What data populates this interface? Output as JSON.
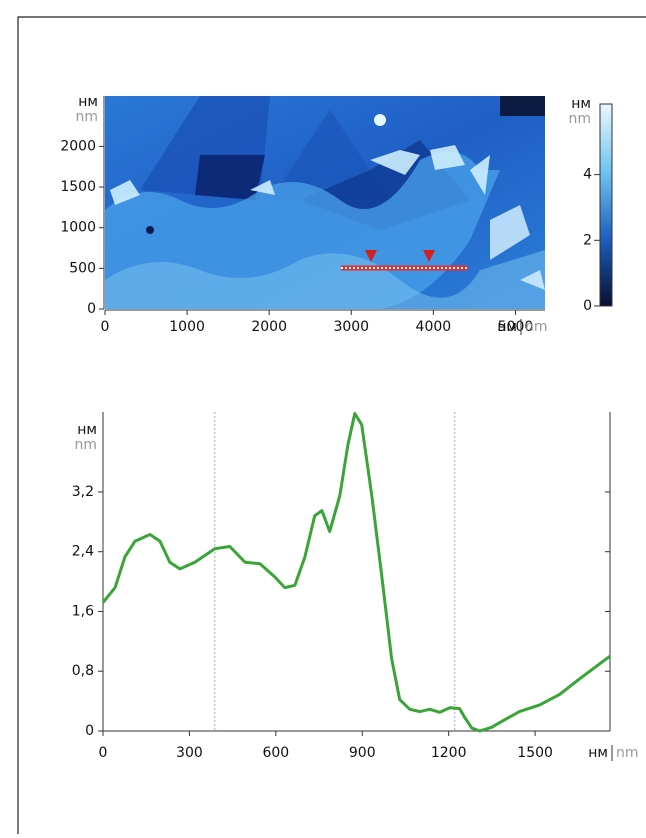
{
  "chart_data": [
    {
      "type": "image",
      "y_label": {
        "ru": "нм",
        "en": "nm"
      },
      "x_label": {
        "ru": "нм",
        "en": "nm"
      },
      "xlim": [
        0,
        5360
      ],
      "xticks": [
        0,
        1000,
        2000,
        3000,
        4000,
        5000
      ],
      "ylim": [
        0,
        2620
      ],
      "yticks": [
        0,
        500,
        1000,
        1500,
        2000
      ],
      "colorbar": {
        "label": {
          "ru": "нм",
          "en": "nm"
        },
        "lim": [
          0,
          6.15
        ],
        "ticks": [
          0,
          2,
          4
        ],
        "colors": [
          "#05102e",
          "#1d5fc0",
          "#6fc4f0",
          "#eaf8ff"
        ]
      }
    },
    {
      "type": "line",
      "y_label": {
        "ru": "нм",
        "en": "nm"
      },
      "x_label": {
        "ru": "нм",
        "en": "nm"
      },
      "xlim": [
        0,
        1760
      ],
      "xticks": [
        0,
        300,
        600,
        900,
        1200,
        1500
      ],
      "ylim": [
        0,
        4.27
      ],
      "yticks": [
        0,
        {
          "value": 0.8,
          "label": "0,8"
        },
        {
          "value": 1.6,
          "label": "1,6"
        },
        {
          "value": 2.4,
          "label": "2,4"
        },
        {
          "value": 3.2,
          "label": "3,2"
        }
      ],
      "cursors": [
        388,
        1221
      ],
      "x": [
        0,
        42,
        76,
        111,
        163,
        198,
        232,
        267,
        319,
        388,
        440,
        493,
        545,
        597,
        631,
        666,
        701,
        735,
        760,
        787,
        822,
        850,
        874,
        898,
        933,
        968,
        1002,
        1030,
        1065,
        1100,
        1134,
        1169,
        1204,
        1238,
        1256,
        1280,
        1308,
        1349,
        1394,
        1446,
        1516,
        1585,
        1655,
        1759
      ],
      "series": [
        {
          "color": "#3aa537",
          "values": [
            1.72,
            1.92,
            2.33,
            2.54,
            2.63,
            2.54,
            2.26,
            2.17,
            2.26,
            2.44,
            2.47,
            2.26,
            2.24,
            2.06,
            1.92,
            1.95,
            2.33,
            2.88,
            2.95,
            2.67,
            3.15,
            3.83,
            4.25,
            4.1,
            3.15,
            2.06,
            0.97,
            0.42,
            0.29,
            0.26,
            0.29,
            0.25,
            0.31,
            0.3,
            0.18,
            0.04,
            0,
            0.05,
            0.15,
            0.26,
            0.35,
            0.49,
            0.7,
            1.0
          ]
        }
      ]
    }
  ]
}
